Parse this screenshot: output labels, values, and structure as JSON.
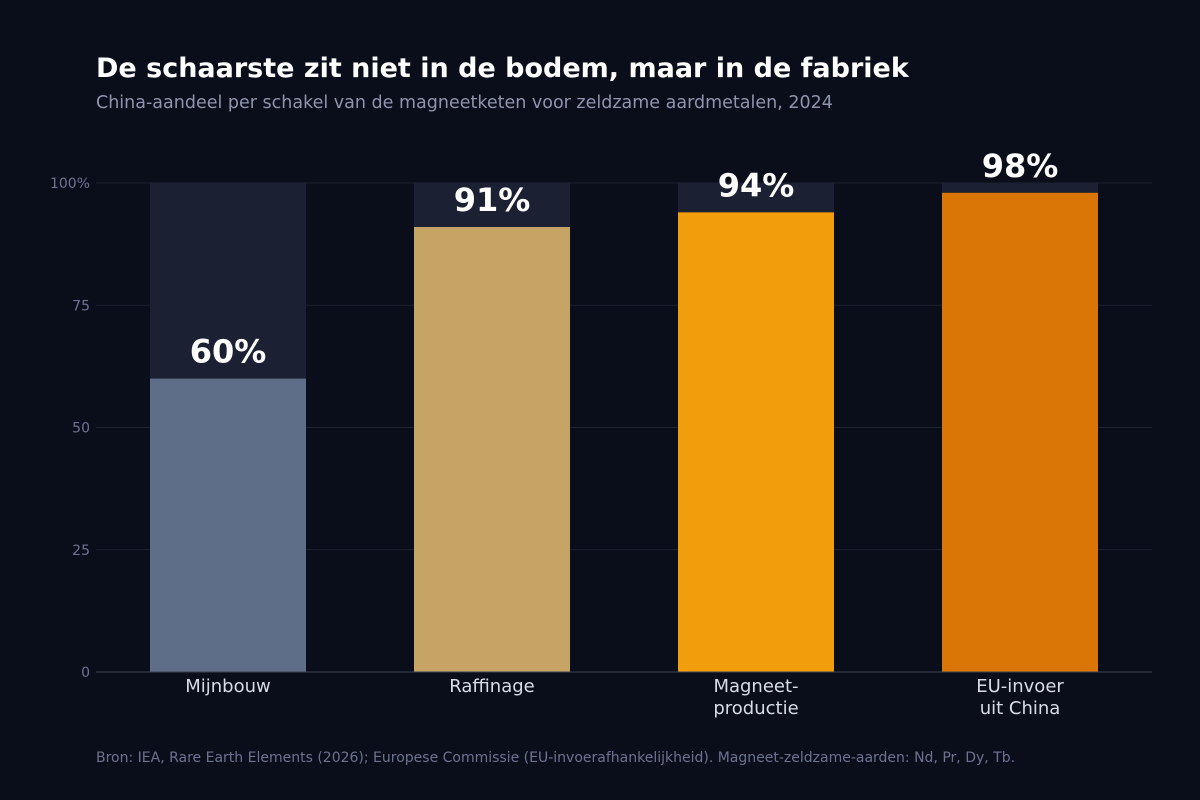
{
  "title": "De schaarste zit niet in de bodem, maar in de fabriek",
  "subtitle": "China-aandeel per schakel van de magneetketen voor zeldzame aardmetalen, 2024",
  "source": "Bron: IEA, Rare Earth Elements (2026); Europese Commissie (EU-invoerafhankelijkheid). Magneet-zeldzame-aarden: Nd, Pr, Dy, Tb.",
  "colors": {
    "background": "#0a0e1a",
    "remainder": "#1b2133",
    "gridline": "#1c2130",
    "axis": "#3a4152",
    "label": "#d8dce8",
    "tick": "#6b7391"
  },
  "chart_data": {
    "type": "bar",
    "categories": [
      "Mijnbouw",
      "Raffinage",
      "Magneet-\nproductie",
      "EU-invoer\nuit China"
    ],
    "values": [
      60,
      91,
      94,
      98
    ],
    "value_labels": [
      "60%",
      "91%",
      "94%",
      "98%"
    ],
    "bar_colors": [
      "#5e6e89",
      "#c5a466",
      "#f29e0c",
      "#d97606"
    ],
    "ylim": [
      0,
      100
    ],
    "yticks": [
      0,
      25,
      50,
      75,
      100
    ],
    "ytick_labels": [
      "0",
      "25",
      "50",
      "75",
      "100%"
    ],
    "grid": true,
    "xlabel": "",
    "ylabel": ""
  }
}
